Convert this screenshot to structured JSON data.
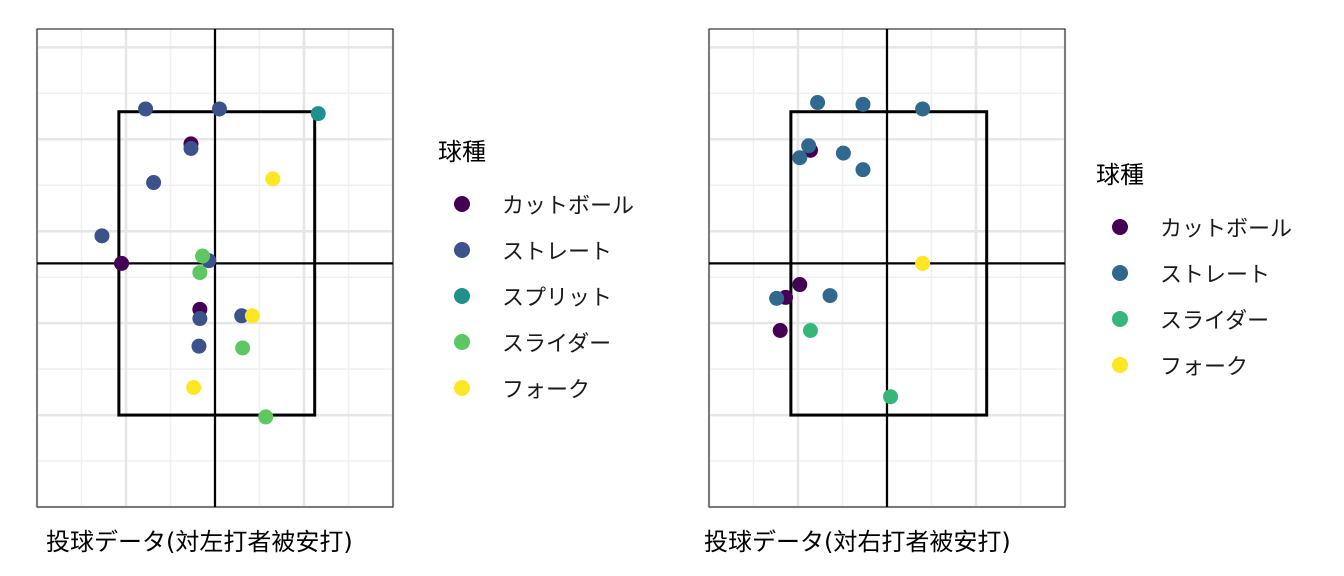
{
  "chart_data": [
    {
      "type": "scatter",
      "xlabel": "投球データ(対左打者被安打)",
      "legend_title": "球種",
      "legend_position": "right",
      "grid": true,
      "xlim": [
        -2.0,
        2.0
      ],
      "ylim": [
        0.0,
        5.2
      ],
      "strike_zone": {
        "x": [
          -1.08,
          1.12
        ],
        "y": [
          1.0,
          4.3
        ]
      },
      "series": [
        {
          "name": "カットボール",
          "color": "#440154",
          "points": [
            [
              -0.27,
              3.95
            ],
            [
              -1.05,
              2.65
            ],
            [
              -0.17,
              2.15
            ]
          ]
        },
        {
          "name": "ストレート",
          "color": "#3b528b",
          "points": [
            [
              -0.78,
              4.33
            ],
            [
              0.05,
              4.33
            ],
            [
              -0.27,
              3.9
            ],
            [
              -0.69,
              3.53
            ],
            [
              -1.27,
              2.95
            ],
            [
              -0.07,
              2.68
            ],
            [
              -0.17,
              2.05
            ],
            [
              0.3,
              2.08
            ],
            [
              -0.18,
              1.75
            ]
          ]
        },
        {
          "name": "スプリット",
          "color": "#21908c",
          "points": [
            [
              1.16,
              4.28
            ]
          ]
        },
        {
          "name": "スライダー",
          "color": "#5dc863",
          "points": [
            [
              -0.14,
              2.73
            ],
            [
              -0.17,
              2.55
            ],
            [
              0.31,
              1.73
            ],
            [
              0.57,
              0.98
            ]
          ]
        },
        {
          "name": "フォーク",
          "color": "#fde725",
          "points": [
            [
              0.65,
              3.57
            ],
            [
              0.42,
              2.08
            ],
            [
              -0.24,
              1.3
            ]
          ]
        }
      ]
    },
    {
      "type": "scatter",
      "xlabel": "投球データ(対右打者被安打)",
      "legend_title": "球種",
      "legend_position": "right",
      "grid": true,
      "xlim": [
        -2.0,
        2.0
      ],
      "ylim": [
        0.0,
        5.2
      ],
      "strike_zone": {
        "x": [
          -1.08,
          1.12
        ],
        "y": [
          1.0,
          4.3
        ]
      },
      "series": [
        {
          "name": "カットボール",
          "color": "#440154",
          "points": [
            [
              -0.86,
              3.88
            ],
            [
              -1.14,
              2.28
            ],
            [
              -0.98,
              2.42
            ],
            [
              -1.2,
              1.92
            ]
          ]
        },
        {
          "name": "ストレート",
          "color": "#31688e",
          "points": [
            [
              -0.78,
              4.4
            ],
            [
              -0.27,
              4.38
            ],
            [
              0.4,
              4.33
            ],
            [
              -0.88,
              3.93
            ],
            [
              -0.98,
              3.8
            ],
            [
              -0.49,
              3.85
            ],
            [
              -0.27,
              3.67
            ],
            [
              -1.24,
              2.27
            ],
            [
              -0.64,
              2.3
            ]
          ]
        },
        {
          "name": "スライダー",
          "color": "#35b779",
          "points": [
            [
              -0.86,
              1.92
            ],
            [
              0.04,
              1.2
            ]
          ]
        },
        {
          "name": "フォーク",
          "color": "#fde725",
          "points": [
            [
              0.4,
              2.65
            ]
          ]
        }
      ]
    }
  ]
}
